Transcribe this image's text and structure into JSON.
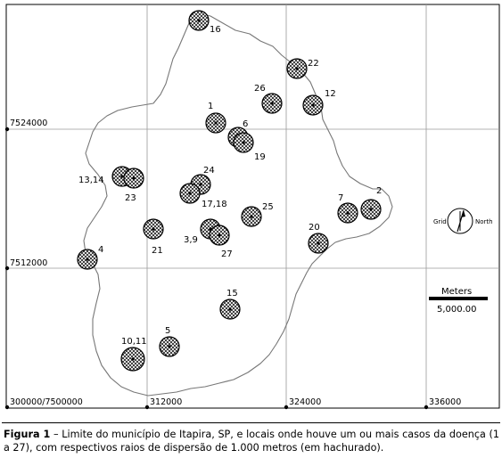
{
  "map": {
    "grid_x_labels": [
      "300000/7500000",
      "312000",
      "324000",
      "336000"
    ],
    "grid_y_labels": [
      "7524000",
      "7512000"
    ],
    "sites": [
      {
        "label": "16"
      },
      {
        "label": "22"
      },
      {
        "label": "26"
      },
      {
        "label": "12"
      },
      {
        "label": "1"
      },
      {
        "label": "6"
      },
      {
        "label": "19"
      },
      {
        "label": "13,14"
      },
      {
        "label": "23"
      },
      {
        "label": "24"
      },
      {
        "label": "17,18"
      },
      {
        "label": "25"
      },
      {
        "label": "7"
      },
      {
        "label": "2"
      },
      {
        "label": "21"
      },
      {
        "label": "3,9"
      },
      {
        "label": "27"
      },
      {
        "label": "20"
      },
      {
        "label": "4"
      },
      {
        "label": "15"
      },
      {
        "label": "10,11"
      },
      {
        "label": "5"
      }
    ],
    "north_arrow": {
      "left_label": "Grid",
      "right_label": "North"
    },
    "scale_bar": {
      "title": "Meters",
      "value": "5,000.00"
    }
  },
  "caption": {
    "figure_label": "Figura 1",
    "text": " – Limite do município de Itapira, SP, e locais onde houve um ou mais casos da doença (1 a 27), com respectivos raios de dispersão de 1.000 metros (em hachurado)."
  }
}
